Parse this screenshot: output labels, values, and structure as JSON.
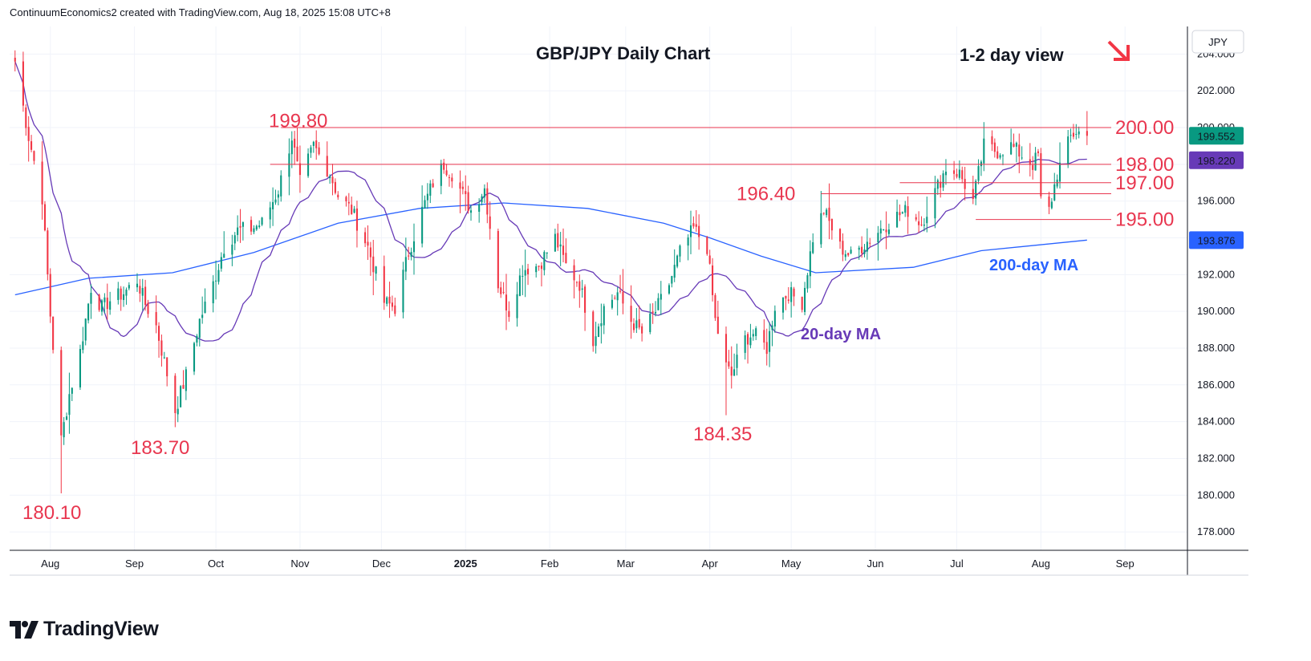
{
  "header": {
    "attribution": "ContinuumEconomics2 created with TradingView.com, Aug 18, 2025 15:08 UTC+8"
  },
  "brand": {
    "name": "TradingView"
  },
  "colors": {
    "up": "#089981",
    "down": "#f23645",
    "level_line": "#e8364f",
    "ma20": "#673ab7",
    "ma200": "#2962ff",
    "grid": "#f0f3fa",
    "arrow": "#f23645"
  },
  "chart_data": {
    "type": "candlestick",
    "title": "GBP/JPY Daily Chart",
    "subtitle": "1-2 day view",
    "currency": "JPY",
    "y_range": [
      177,
      205.5
    ],
    "yaxis_ticks": [
      "178.000",
      "180.000",
      "182.000",
      "184.000",
      "186.000",
      "188.000",
      "190.000",
      "192.000",
      "194.000",
      "196.000",
      "198.000",
      "200.000",
      "202.000",
      "204.000"
    ],
    "xaxis_ticks": [
      "Aug",
      "Sep",
      "Oct",
      "Nov",
      "Dec",
      "2025",
      "Feb",
      "Mar",
      "Apr",
      "May",
      "Jun",
      "Jul",
      "Aug",
      "Sep"
    ],
    "price_badges": [
      {
        "label": "199.552",
        "value": 199.552,
        "color": "#089981"
      },
      {
        "label": "198.220",
        "value": 198.22,
        "color": "#673ab7"
      },
      {
        "label": "193.876",
        "value": 193.876,
        "color": "#2962ff"
      }
    ],
    "levels": [
      {
        "label": "200.00",
        "value": 200.0,
        "from": "2024-10-25",
        "to": "2025-08-18"
      },
      {
        "label": "198.00",
        "value": 198.0,
        "from": "2024-10-21",
        "to": "2025-08-18"
      },
      {
        "label": "197.00",
        "value": 197.0,
        "from": "2025-06-10",
        "to": "2025-08-18"
      },
      {
        "label": "196.40",
        "value": 196.4,
        "from": "2025-05-12",
        "to": "2025-08-18"
      },
      {
        "label": "195.00",
        "value": 195.0,
        "from": "2025-07-08",
        "to": "2025-08-18"
      }
    ],
    "annotations": [
      {
        "text": "199.80",
        "value": 199.8
      },
      {
        "text": "183.70",
        "value": 183.7
      },
      {
        "text": "180.10",
        "value": 180.1
      },
      {
        "text": "184.35",
        "value": 184.35
      },
      {
        "text": "20-day MA"
      },
      {
        "text": "200-day MA"
      }
    ],
    "anchors": [
      [
        "2024-07-19",
        203.6
      ],
      [
        "2024-07-24",
        199.5
      ],
      [
        "2024-07-29",
        196.2
      ],
      [
        "2024-08-01",
        189.8
      ],
      [
        "2024-08-05",
        183.0
      ],
      [
        "2024-08-08",
        185.5
      ],
      [
        "2024-08-12",
        187.8
      ],
      [
        "2024-08-16",
        191.3
      ],
      [
        "2024-08-20",
        190.2
      ],
      [
        "2024-08-23",
        190.6
      ],
      [
        "2024-08-28",
        191.0
      ],
      [
        "2024-09-02",
        191.7
      ],
      [
        "2024-09-05",
        190.4
      ],
      [
        "2024-09-09",
        189.2
      ],
      [
        "2024-09-13",
        186.6
      ],
      [
        "2024-09-16",
        184.6
      ],
      [
        "2024-09-20",
        186.5
      ],
      [
        "2024-09-25",
        189.5
      ],
      [
        "2024-09-30",
        191.5
      ],
      [
        "2024-10-04",
        193.5
      ],
      [
        "2024-10-09",
        194.4
      ],
      [
        "2024-10-14",
        194.5
      ],
      [
        "2024-10-18",
        194.8
      ],
      [
        "2024-10-24",
        196.6
      ],
      [
        "2024-10-29",
        199.5
      ],
      [
        "2024-11-01",
        197.0
      ],
      [
        "2024-11-06",
        199.0
      ],
      [
        "2024-11-12",
        197.5
      ],
      [
        "2024-11-15",
        196.3
      ],
      [
        "2024-11-20",
        195.5
      ],
      [
        "2024-11-26",
        193.5
      ],
      [
        "2024-12-02",
        190.5
      ],
      [
        "2024-12-06",
        190.2
      ],
      [
        "2024-12-11",
        193.2
      ],
      [
        "2024-12-16",
        195.5
      ],
      [
        "2024-12-20",
        197.0
      ],
      [
        "2024-12-24",
        198.0
      ],
      [
        "2024-12-27",
        197.5
      ],
      [
        "2025-01-03",
        195.5
      ],
      [
        "2025-01-08",
        196.7
      ],
      [
        "2025-01-13",
        191.5
      ],
      [
        "2025-01-17",
        190.0
      ],
      [
        "2025-01-22",
        192.3
      ],
      [
        "2025-01-28",
        192.5
      ],
      [
        "2025-02-03",
        194.0
      ],
      [
        "2025-02-07",
        192.5
      ],
      [
        "2025-02-12",
        191.5
      ],
      [
        "2025-02-17",
        188.5
      ],
      [
        "2025-02-21",
        190.2
      ],
      [
        "2025-02-26",
        191.0
      ],
      [
        "2025-03-03",
        189.5
      ],
      [
        "2025-03-07",
        188.8
      ],
      [
        "2025-03-12",
        190.0
      ],
      [
        "2025-03-17",
        191.5
      ],
      [
        "2025-03-21",
        193.2
      ],
      [
        "2025-03-26",
        194.5
      ],
      [
        "2025-03-31",
        193.5
      ],
      [
        "2025-04-03",
        189.5
      ],
      [
        "2025-04-07",
        187.0
      ],
      [
        "2025-04-09",
        186.5
      ],
      [
        "2025-04-14",
        188.5
      ],
      [
        "2025-04-17",
        188.8
      ],
      [
        "2025-04-22",
        188.0
      ],
      [
        "2025-04-25",
        190.3
      ],
      [
        "2025-04-30",
        191.0
      ],
      [
        "2025-05-05",
        190.5
      ],
      [
        "2025-05-09",
        194.0
      ],
      [
        "2025-05-13",
        195.5
      ],
      [
        "2025-05-19",
        193.5
      ],
      [
        "2025-05-23",
        193.0
      ],
      [
        "2025-05-29",
        193.8
      ],
      [
        "2025-06-03",
        194.5
      ],
      [
        "2025-06-09",
        195.2
      ],
      [
        "2025-06-13",
        195.5
      ],
      [
        "2025-06-18",
        194.8
      ],
      [
        "2025-06-23",
        196.5
      ],
      [
        "2025-06-27",
        197.8
      ],
      [
        "2025-07-02",
        197.5
      ],
      [
        "2025-07-07",
        196.0
      ],
      [
        "2025-07-11",
        199.0
      ],
      [
        "2025-07-16",
        198.7
      ],
      [
        "2025-07-21",
        199.0
      ],
      [
        "2025-07-25",
        198.5
      ],
      [
        "2025-07-29",
        198.0
      ],
      [
        "2025-07-31",
        198.5
      ],
      [
        "2025-08-01",
        196.0
      ],
      [
        "2025-08-04",
        195.5
      ],
      [
        "2025-08-07",
        197.5
      ],
      [
        "2025-08-12",
        199.5
      ],
      [
        "2025-08-14",
        199.8
      ],
      [
        "2025-08-18",
        199.552
      ]
    ],
    "ma200_anchors": [
      [
        "2024-07-19",
        190.9
      ],
      [
        "2024-08-15",
        191.8
      ],
      [
        "2024-09-15",
        192.1
      ],
      [
        "2024-10-15",
        193.2
      ],
      [
        "2024-11-15",
        194.8
      ],
      [
        "2024-12-15",
        195.6
      ],
      [
        "2025-01-15",
        195.9
      ],
      [
        "2025-02-15",
        195.6
      ],
      [
        "2025-03-15",
        194.8
      ],
      [
        "2025-04-01",
        194.0
      ],
      [
        "2025-04-20",
        193.0
      ],
      [
        "2025-05-10",
        192.1
      ],
      [
        "2025-06-15",
        192.4
      ],
      [
        "2025-07-10",
        193.3
      ],
      [
        "2025-08-18",
        193.876
      ]
    ],
    "price_axis_note": "last price 199.552"
  }
}
